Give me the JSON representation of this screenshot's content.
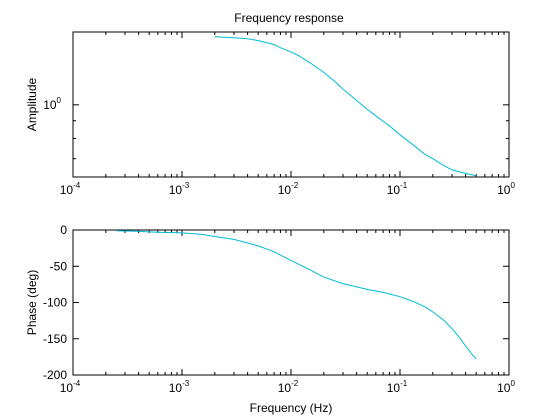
{
  "figure_title": "Frequency response",
  "chart_data": [
    {
      "type": "line",
      "name": "amplitude-plot",
      "ylabel": "Amplitude",
      "xlabel": "",
      "xscale": "log",
      "yscale": "log",
      "xlim": [
        0.0001,
        1
      ],
      "ylim": [
        0.62,
        1.62
      ],
      "x_ticks": [
        {
          "base": "10",
          "exp": "-4"
        },
        {
          "base": "10",
          "exp": "-3"
        },
        {
          "base": "10",
          "exp": "-2"
        },
        {
          "base": "10",
          "exp": "-1"
        },
        {
          "base": "10",
          "exp": "0"
        }
      ],
      "x_tick_values": [
        0.0001,
        0.001,
        0.01,
        0.1,
        1
      ],
      "y_ticks": [
        {
          "base": "10",
          "exp": "0"
        }
      ],
      "y_tick_values": [
        1
      ],
      "grid": false,
      "color": "#00bcd4",
      "x": [
        0.002,
        0.003,
        0.004,
        0.005,
        0.006,
        0.007,
        0.008,
        0.01,
        0.012,
        0.015,
        0.02,
        0.025,
        0.03,
        0.04,
        0.05,
        0.06,
        0.08,
        0.1,
        0.13,
        0.17,
        0.2,
        0.25,
        0.3,
        0.4,
        0.5
      ],
      "y": [
        1.57,
        1.56,
        1.55,
        1.53,
        1.51,
        1.49,
        1.46,
        1.42,
        1.38,
        1.32,
        1.24,
        1.17,
        1.11,
        1.03,
        0.97,
        0.93,
        0.87,
        0.82,
        0.77,
        0.72,
        0.7,
        0.67,
        0.65,
        0.635,
        0.625
      ]
    },
    {
      "type": "line",
      "name": "phase-plot",
      "ylabel": "Phase (deg)",
      "xlabel": "Frequency (Hz)",
      "xscale": "log",
      "xlim": [
        0.0001,
        1
      ],
      "ylim": [
        -200,
        0
      ],
      "x_ticks": [
        {
          "base": "10",
          "exp": "-4"
        },
        {
          "base": "10",
          "exp": "-3"
        },
        {
          "base": "10",
          "exp": "-2"
        },
        {
          "base": "10",
          "exp": "-1"
        },
        {
          "base": "10",
          "exp": "0"
        }
      ],
      "x_tick_values": [
        0.0001,
        0.001,
        0.01,
        0.1,
        1
      ],
      "y_ticks": [
        "0",
        "-50",
        "-100",
        "-150",
        "-200"
      ],
      "y_tick_values": [
        0,
        -50,
        -100,
        -150,
        -200
      ],
      "grid": false,
      "color": "#00bcd4",
      "x": [
        0.00025,
        0.0004,
        0.0006,
        0.001,
        0.0015,
        0.002,
        0.003,
        0.004,
        0.005,
        0.007,
        0.01,
        0.015,
        0.02,
        0.03,
        0.05,
        0.07,
        0.1,
        0.13,
        0.17,
        0.2,
        0.25,
        0.3,
        0.35,
        0.4,
        0.45,
        0.5
      ],
      "y": [
        -1,
        -2,
        -3,
        -4,
        -6,
        -9,
        -13,
        -18,
        -22,
        -30,
        -42,
        -55,
        -65,
        -74,
        -82,
        -86,
        -92,
        -98,
        -106,
        -113,
        -124,
        -136,
        -148,
        -160,
        -170,
        -178
      ]
    }
  ]
}
